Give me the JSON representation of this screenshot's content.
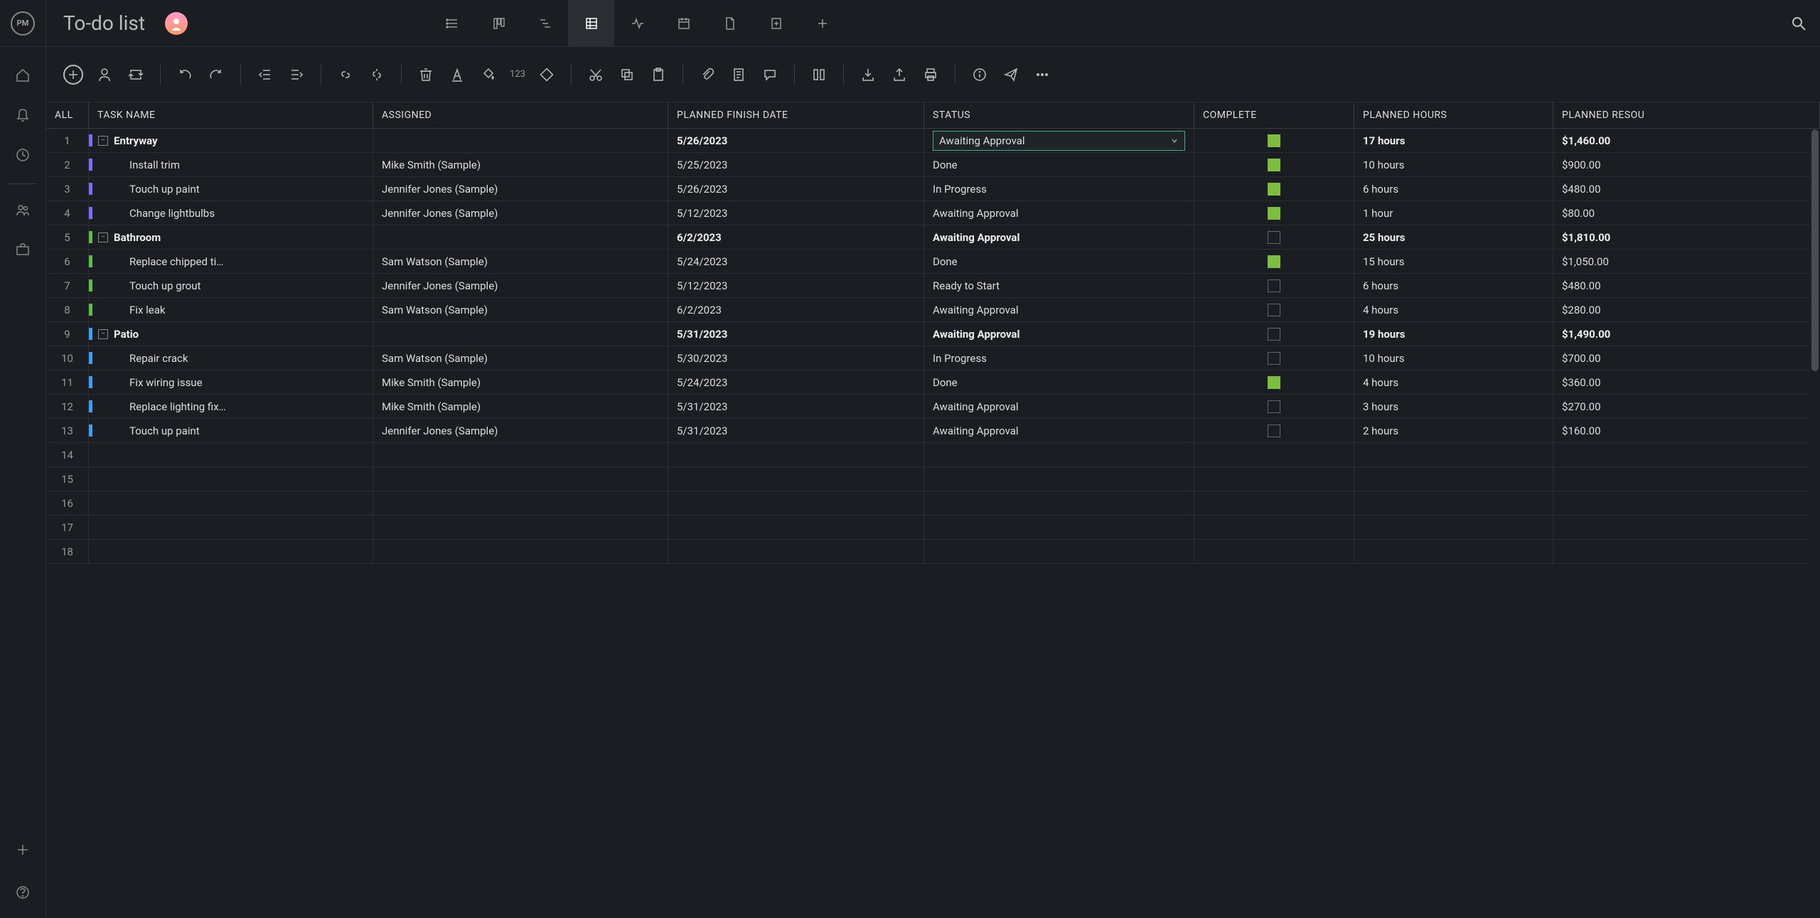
{
  "header": {
    "logo_text": "PM",
    "title": "To-do list"
  },
  "view_tabs": [
    {
      "name": "list",
      "active": false
    },
    {
      "name": "board",
      "active": false
    },
    {
      "name": "gantt",
      "active": false
    },
    {
      "name": "sheet",
      "active": true
    },
    {
      "name": "pulse",
      "active": false
    },
    {
      "name": "calendar",
      "active": false
    },
    {
      "name": "file",
      "active": false
    },
    {
      "name": "report",
      "active": false
    },
    {
      "name": "add",
      "active": false
    }
  ],
  "toolbar": {
    "number_label": "123"
  },
  "columns": [
    "ALL",
    "TASK NAME",
    "ASSIGNED",
    "PLANNED FINISH DATE",
    "STATUS",
    "COMPLETE",
    "PLANNED HOURS",
    "PLANNED RESOU"
  ],
  "stripe_colors": {
    "entryway": "#7b6ef6",
    "bathroom": "#5fbd4a",
    "patio": "#3ba0f3"
  },
  "rows": [
    {
      "n": 1,
      "group": true,
      "stripe": "entryway",
      "task": "Entryway",
      "assigned": "",
      "date": "5/26/2023",
      "status": "Awaiting Approval",
      "status_select": true,
      "complete": true,
      "hours": "17 hours",
      "resource": "$1,460.00",
      "bold": true
    },
    {
      "n": 2,
      "group": false,
      "stripe": "entryway",
      "task": "Install trim",
      "assigned": "Mike Smith (Sample)",
      "date": "5/25/2023",
      "status": "Done",
      "complete": true,
      "hours": "10 hours",
      "resource": "$900.00"
    },
    {
      "n": 3,
      "group": false,
      "stripe": "entryway",
      "task": "Touch up paint",
      "assigned": "Jennifer Jones (Sample)",
      "date": "5/26/2023",
      "status": "In Progress",
      "complete": true,
      "hours": "6 hours",
      "resource": "$480.00"
    },
    {
      "n": 4,
      "group": false,
      "stripe": "entryway",
      "task": "Change lightbulbs",
      "assigned": "Jennifer Jones (Sample)",
      "date": "5/12/2023",
      "status": "Awaiting Approval",
      "complete": true,
      "hours": "1 hour",
      "resource": "$80.00"
    },
    {
      "n": 5,
      "group": true,
      "stripe": "bathroom",
      "task": "Bathroom",
      "assigned": "",
      "date": "6/2/2023",
      "status": "Awaiting Approval",
      "complete": false,
      "hours": "25 hours",
      "resource": "$1,810.00",
      "bold": true
    },
    {
      "n": 6,
      "group": false,
      "stripe": "bathroom",
      "task": "Replace chipped ti…",
      "assigned": "Sam Watson (Sample)",
      "date": "5/24/2023",
      "status": "Done",
      "complete": true,
      "hours": "15 hours",
      "resource": "$1,050.00"
    },
    {
      "n": 7,
      "group": false,
      "stripe": "bathroom",
      "task": "Touch up grout",
      "assigned": "Jennifer Jones (Sample)",
      "date": "5/12/2023",
      "status": "Ready to Start",
      "complete": false,
      "hours": "6 hours",
      "resource": "$480.00"
    },
    {
      "n": 8,
      "group": false,
      "stripe": "bathroom",
      "task": "Fix leak",
      "assigned": "Sam Watson (Sample)",
      "date": "6/2/2023",
      "status": "Awaiting Approval",
      "complete": false,
      "hours": "4 hours",
      "resource": "$280.00"
    },
    {
      "n": 9,
      "group": true,
      "stripe": "patio",
      "task": "Patio",
      "assigned": "",
      "date": "5/31/2023",
      "status": "Awaiting Approval",
      "complete": false,
      "hours": "19 hours",
      "resource": "$1,490.00",
      "bold": true
    },
    {
      "n": 10,
      "group": false,
      "stripe": "patio",
      "task": "Repair crack",
      "assigned": "Sam Watson (Sample)",
      "date": "5/30/2023",
      "status": "In Progress",
      "complete": false,
      "hours": "10 hours",
      "resource": "$700.00"
    },
    {
      "n": 11,
      "group": false,
      "stripe": "patio",
      "task": "Fix wiring issue",
      "assigned": "Mike Smith (Sample)",
      "date": "5/24/2023",
      "status": "Done",
      "complete": true,
      "hours": "4 hours",
      "resource": "$360.00"
    },
    {
      "n": 12,
      "group": false,
      "stripe": "patio",
      "task": "Replace lighting fix…",
      "assigned": "Mike Smith (Sample)",
      "date": "5/31/2023",
      "status": "Awaiting Approval",
      "complete": false,
      "hours": "3 hours",
      "resource": "$270.00"
    },
    {
      "n": 13,
      "group": false,
      "stripe": "patio",
      "task": "Touch up paint",
      "assigned": "Jennifer Jones (Sample)",
      "date": "5/31/2023",
      "status": "Awaiting Approval",
      "complete": false,
      "hours": "2 hours",
      "resource": "$160.00"
    },
    {
      "n": 14,
      "empty": true
    },
    {
      "n": 15,
      "empty": true
    },
    {
      "n": 16,
      "empty": true
    },
    {
      "n": 17,
      "empty": true
    },
    {
      "n": 18,
      "empty": true
    }
  ]
}
